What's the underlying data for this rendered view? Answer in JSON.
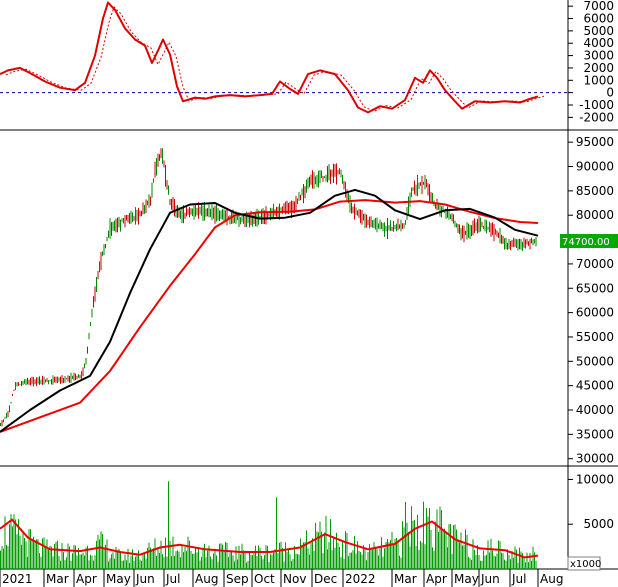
{
  "chart_data": [
    {
      "type": "line",
      "series": [],
      "y_ticks": [
        7000,
        6000,
        5000,
        4000,
        3000,
        2000,
        1000,
        0,
        -1000,
        -2000
      ],
      "ylim": [
        -2700,
        7500
      ],
      "zero_line": "dashed blue",
      "line_points": [
        {
          "x": 0,
          "y": 1500
        },
        {
          "x": 8,
          "y": 1800
        },
        {
          "x": 20,
          "y": 2000
        },
        {
          "x": 32,
          "y": 1500
        },
        {
          "x": 45,
          "y": 900
        },
        {
          "x": 60,
          "y": 400
        },
        {
          "x": 75,
          "y": 200
        },
        {
          "x": 85,
          "y": 800
        },
        {
          "x": 95,
          "y": 3000
        },
        {
          "x": 103,
          "y": 6000
        },
        {
          "x": 108,
          "y": 7300
        },
        {
          "x": 115,
          "y": 6700
        },
        {
          "x": 125,
          "y": 5200
        },
        {
          "x": 135,
          "y": 4300
        },
        {
          "x": 145,
          "y": 3800
        },
        {
          "x": 152,
          "y": 2400
        },
        {
          "x": 158,
          "y": 3400
        },
        {
          "x": 163,
          "y": 4300
        },
        {
          "x": 170,
          "y": 3100
        },
        {
          "x": 177,
          "y": 500
        },
        {
          "x": 183,
          "y": -700
        },
        {
          "x": 195,
          "y": -400
        },
        {
          "x": 205,
          "y": -500
        },
        {
          "x": 215,
          "y": -300
        },
        {
          "x": 230,
          "y": -200
        },
        {
          "x": 245,
          "y": -300
        },
        {
          "x": 260,
          "y": -200
        },
        {
          "x": 272,
          "y": -100
        },
        {
          "x": 280,
          "y": 900
        },
        {
          "x": 290,
          "y": 300
        },
        {
          "x": 298,
          "y": -100
        },
        {
          "x": 308,
          "y": 1500
        },
        {
          "x": 320,
          "y": 1800
        },
        {
          "x": 335,
          "y": 1500
        },
        {
          "x": 348,
          "y": 200
        },
        {
          "x": 358,
          "y": -1200
        },
        {
          "x": 368,
          "y": -1600
        },
        {
          "x": 380,
          "y": -1100
        },
        {
          "x": 392,
          "y": -1300
        },
        {
          "x": 405,
          "y": -600
        },
        {
          "x": 415,
          "y": 1200
        },
        {
          "x": 423,
          "y": 800
        },
        {
          "x": 430,
          "y": 1800
        },
        {
          "x": 437,
          "y": 1200
        },
        {
          "x": 445,
          "y": 200
        },
        {
          "x": 455,
          "y": -700
        },
        {
          "x": 462,
          "y": -1300
        },
        {
          "x": 475,
          "y": -700
        },
        {
          "x": 490,
          "y": -800
        },
        {
          "x": 505,
          "y": -700
        },
        {
          "x": 520,
          "y": -800
        },
        {
          "x": 530,
          "y": -500
        },
        {
          "x": 538,
          "y": -300
        }
      ]
    },
    {
      "type": "candlestick",
      "y_ticks": [
        95000,
        90000,
        85000,
        80000,
        75000,
        70000,
        65000,
        60000,
        55000,
        50000,
        45000,
        40000,
        35000,
        30000
      ],
      "ylim": [
        28500,
        97500
      ],
      "price_box": "74700.00",
      "price_box_value": 74700,
      "price_path": [
        {
          "x": 0,
          "y": 37000
        },
        {
          "x": 8,
          "y": 39000
        },
        {
          "x": 15,
          "y": 45000
        },
        {
          "x": 30,
          "y": 46000
        },
        {
          "x": 50,
          "y": 46000
        },
        {
          "x": 70,
          "y": 46500
        },
        {
          "x": 82,
          "y": 47000
        },
        {
          "x": 86,
          "y": 50000
        },
        {
          "x": 92,
          "y": 60000
        },
        {
          "x": 100,
          "y": 70000
        },
        {
          "x": 110,
          "y": 77000
        },
        {
          "x": 125,
          "y": 79000
        },
        {
          "x": 140,
          "y": 80000
        },
        {
          "x": 150,
          "y": 83000
        },
        {
          "x": 155,
          "y": 89000
        },
        {
          "x": 162,
          "y": 93000
        },
        {
          "x": 170,
          "y": 83000
        },
        {
          "x": 180,
          "y": 80000
        },
        {
          "x": 200,
          "y": 81000
        },
        {
          "x": 220,
          "y": 80000
        },
        {
          "x": 240,
          "y": 79000
        },
        {
          "x": 260,
          "y": 79500
        },
        {
          "x": 280,
          "y": 81000
        },
        {
          "x": 295,
          "y": 82000
        },
        {
          "x": 310,
          "y": 87000
        },
        {
          "x": 325,
          "y": 88000
        },
        {
          "x": 340,
          "y": 89000
        },
        {
          "x": 350,
          "y": 82000
        },
        {
          "x": 365,
          "y": 79000
        },
        {
          "x": 385,
          "y": 77500
        },
        {
          "x": 405,
          "y": 78000
        },
        {
          "x": 412,
          "y": 85000
        },
        {
          "x": 425,
          "y": 87000
        },
        {
          "x": 435,
          "y": 82000
        },
        {
          "x": 450,
          "y": 80000
        },
        {
          "x": 462,
          "y": 76000
        },
        {
          "x": 480,
          "y": 78000
        },
        {
          "x": 495,
          "y": 77000
        },
        {
          "x": 505,
          "y": 74000
        },
        {
          "x": 520,
          "y": 74000
        },
        {
          "x": 538,
          "y": 74700
        }
      ],
      "ma_black": [
        {
          "x": 0,
          "y": 35500
        },
        {
          "x": 30,
          "y": 40000
        },
        {
          "x": 60,
          "y": 44000
        },
        {
          "x": 90,
          "y": 47000
        },
        {
          "x": 110,
          "y": 54000
        },
        {
          "x": 130,
          "y": 64000
        },
        {
          "x": 150,
          "y": 73000
        },
        {
          "x": 170,
          "y": 80500
        },
        {
          "x": 190,
          "y": 82200
        },
        {
          "x": 215,
          "y": 82500
        },
        {
          "x": 235,
          "y": 80500
        },
        {
          "x": 260,
          "y": 79300
        },
        {
          "x": 285,
          "y": 79500
        },
        {
          "x": 310,
          "y": 80500
        },
        {
          "x": 335,
          "y": 84000
        },
        {
          "x": 355,
          "y": 85200
        },
        {
          "x": 375,
          "y": 84000
        },
        {
          "x": 395,
          "y": 81000
        },
        {
          "x": 420,
          "y": 79200
        },
        {
          "x": 445,
          "y": 81000
        },
        {
          "x": 470,
          "y": 81300
        },
        {
          "x": 495,
          "y": 79500
        },
        {
          "x": 515,
          "y": 77000
        },
        {
          "x": 538,
          "y": 75800
        }
      ],
      "ma_red": [
        {
          "x": 0,
          "y": 35500
        },
        {
          "x": 40,
          "y": 38500
        },
        {
          "x": 80,
          "y": 41500
        },
        {
          "x": 110,
          "y": 48000
        },
        {
          "x": 140,
          "y": 57000
        },
        {
          "x": 170,
          "y": 65500
        },
        {
          "x": 195,
          "y": 72000
        },
        {
          "x": 215,
          "y": 77500
        },
        {
          "x": 235,
          "y": 80000
        },
        {
          "x": 260,
          "y": 80600
        },
        {
          "x": 290,
          "y": 80700
        },
        {
          "x": 315,
          "y": 81200
        },
        {
          "x": 340,
          "y": 82800
        },
        {
          "x": 365,
          "y": 83100
        },
        {
          "x": 395,
          "y": 82600
        },
        {
          "x": 420,
          "y": 82900
        },
        {
          "x": 445,
          "y": 82200
        },
        {
          "x": 470,
          "y": 80700
        },
        {
          "x": 495,
          "y": 79400
        },
        {
          "x": 520,
          "y": 78600
        },
        {
          "x": 538,
          "y": 78400
        }
      ]
    },
    {
      "type": "bar",
      "y_ticks": [
        10000,
        5000
      ],
      "ylim": [
        0,
        11500
      ],
      "unit_label": "x1000",
      "volume_profile": [
        {
          "x": 0,
          "y": 5000
        },
        {
          "x": 20,
          "y": 4000
        },
        {
          "x": 40,
          "y": 2500
        },
        {
          "x": 80,
          "y": 2000
        },
        {
          "x": 100,
          "y": 3000
        },
        {
          "x": 120,
          "y": 1500
        },
        {
          "x": 140,
          "y": 1800
        },
        {
          "x": 165,
          "y": 3000
        },
        {
          "x": 185,
          "y": 2800
        },
        {
          "x": 210,
          "y": 2200
        },
        {
          "x": 240,
          "y": 2000
        },
        {
          "x": 270,
          "y": 2100
        },
        {
          "x": 300,
          "y": 2600
        },
        {
          "x": 325,
          "y": 4200
        },
        {
          "x": 345,
          "y": 3000
        },
        {
          "x": 370,
          "y": 2000
        },
        {
          "x": 395,
          "y": 3000
        },
        {
          "x": 415,
          "y": 5000
        },
        {
          "x": 432,
          "y": 5700
        },
        {
          "x": 455,
          "y": 3500
        },
        {
          "x": 480,
          "y": 2500
        },
        {
          "x": 505,
          "y": 2400
        },
        {
          "x": 525,
          "y": 1500
        },
        {
          "x": 538,
          "y": 1600
        }
      ],
      "ma_volume": [
        {
          "x": 0,
          "y": 4500
        },
        {
          "x": 12,
          "y": 5500
        },
        {
          "x": 28,
          "y": 3500
        },
        {
          "x": 50,
          "y": 2200
        },
        {
          "x": 80,
          "y": 2000
        },
        {
          "x": 100,
          "y": 2400
        },
        {
          "x": 120,
          "y": 1900
        },
        {
          "x": 140,
          "y": 1600
        },
        {
          "x": 160,
          "y": 2400
        },
        {
          "x": 180,
          "y": 2700
        },
        {
          "x": 205,
          "y": 2200
        },
        {
          "x": 240,
          "y": 1900
        },
        {
          "x": 270,
          "y": 1900
        },
        {
          "x": 300,
          "y": 2400
        },
        {
          "x": 325,
          "y": 3900
        },
        {
          "x": 345,
          "y": 3000
        },
        {
          "x": 368,
          "y": 2200
        },
        {
          "x": 395,
          "y": 2800
        },
        {
          "x": 415,
          "y": 4500
        },
        {
          "x": 432,
          "y": 5300
        },
        {
          "x": 455,
          "y": 3300
        },
        {
          "x": 480,
          "y": 2300
        },
        {
          "x": 505,
          "y": 2100
        },
        {
          "x": 525,
          "y": 1300
        },
        {
          "x": 538,
          "y": 1500
        }
      ],
      "spikes": [
        {
          "x": 168,
          "y": 9800
        },
        {
          "x": 277,
          "y": 8000
        },
        {
          "x": 406,
          "y": 7500
        },
        {
          "x": 412,
          "y": 7000
        },
        {
          "x": 430,
          "y": 6800
        },
        {
          "x": 533,
          "y": 2500
        }
      ]
    }
  ],
  "time_axis": {
    "labels": [
      "2021",
      "Mar",
      "Apr",
      "May",
      "Jun",
      "Jul",
      "Aug",
      "Sep",
      "Oct",
      "Nov",
      "Dec",
      "2022",
      "Mar",
      "Apr",
      "May",
      "Jun",
      "Jul",
      "Aug"
    ]
  },
  "colors": {
    "indicator_line": "#dd0000",
    "zero_line": "#0000aa",
    "candle_up": "#008800",
    "candle_down": "#cc0000",
    "ma_black": "#000000",
    "ma_red": "#ee0000",
    "volume": "#009900",
    "price_box_bg": "#00aa00",
    "price_box_text": "#ffffff"
  }
}
